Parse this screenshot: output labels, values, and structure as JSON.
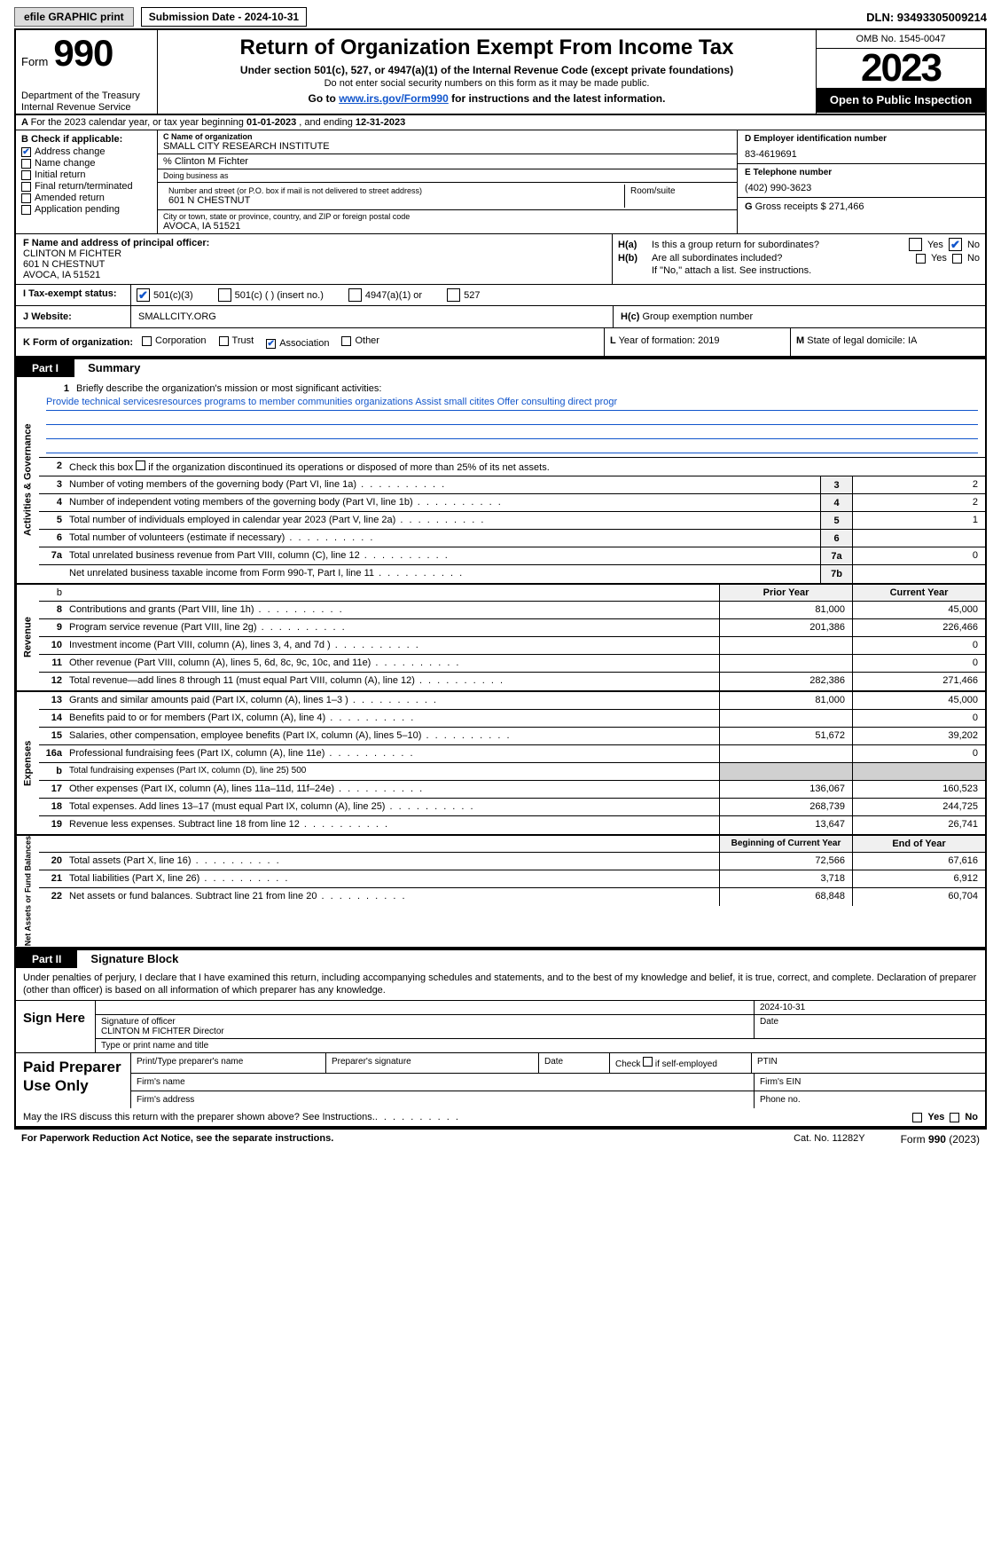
{
  "top": {
    "efile": "efile GRAPHIC print",
    "submission": "Submission Date - 2024-10-31",
    "dln": "DLN: 93493305009214"
  },
  "header": {
    "form_word": "Form",
    "form_num": "990",
    "title": "Return of Organization Exempt From Income Tax",
    "subtitle": "Under section 501(c), 527, or 4947(a)(1) of the Internal Revenue Code (except private foundations)",
    "nossn": "Do not enter social security numbers on this form as it may be made public.",
    "goto_pre": "Go to ",
    "goto_link": "www.irs.gov/Form990",
    "goto_post": " for instructions and the latest information.",
    "dept": "Department of the Treasury\nInternal Revenue Service",
    "omb": "OMB No. 1545-0047",
    "year": "2023",
    "open": "Open to Public Inspection"
  },
  "A": {
    "text_pre": "For the 2023 calendar year, or tax year beginning ",
    "begin": "01-01-2023",
    "mid": " , and ending ",
    "end": "12-31-2023"
  },
  "B": {
    "hdr": "B Check if applicable:",
    "items": [
      {
        "label": "Address change",
        "checked": true
      },
      {
        "label": "Name change",
        "checked": false
      },
      {
        "label": "Initial return",
        "checked": false
      },
      {
        "label": "Final return/terminated",
        "checked": false
      },
      {
        "label": "Amended return",
        "checked": false
      },
      {
        "label": "Application pending",
        "checked": false
      }
    ]
  },
  "C": {
    "name_lbl": "C Name of organization",
    "name": "SMALL CITY RESEARCH INSTITUTE",
    "care_of": "% Clinton M Fichter",
    "dba_lbl": "Doing business as",
    "addr_lbl": "Number and street (or P.O. box if mail is not delivered to street address)",
    "addr": "601 N CHESTNUT",
    "room_lbl": "Room/suite",
    "city_lbl": "City or town, state or province, country, and ZIP or foreign postal code",
    "city": "AVOCA, IA  51521"
  },
  "D": {
    "ein_lbl": "D Employer identification number",
    "ein": "83-4619691",
    "phone_lbl": "E Telephone number",
    "phone": "(402) 990-3623",
    "gross_lbl": "G",
    "gross": "Gross receipts $ 271,466"
  },
  "F": {
    "lbl": "F  Name and address of principal officer:",
    "name": "CLINTON M FICHTER",
    "addr1": "601 N CHESTNUT",
    "addr2": "AVOCA, IA  51521"
  },
  "H": {
    "a_lbl": "H(a)",
    "a_txt": "Is this a group return for subordinates?",
    "a_no_checked": true,
    "b_lbl": "H(b)",
    "b_txt": "Are all subordinates included?",
    "b_note": "If \"No,\" attach a list. See instructions.",
    "c_lbl": "H(c)",
    "c_txt": "Group exemption number",
    "yes": "Yes",
    "no": "No"
  },
  "I": {
    "lbl": "Tax-exempt status:",
    "opts": [
      {
        "label": "501(c)(3)",
        "checked": true
      },
      {
        "label": "501(c) (  ) (insert no.)",
        "checked": false
      },
      {
        "label": "4947(a)(1) or",
        "checked": false
      },
      {
        "label": "527",
        "checked": false
      }
    ]
  },
  "J": {
    "lbl": "Website:",
    "val": "SMALLCITY.ORG"
  },
  "K": {
    "lbl": "K Form of organization:",
    "opts": [
      {
        "label": "Corporation",
        "checked": false
      },
      {
        "label": "Trust",
        "checked": false
      },
      {
        "label": "Association",
        "checked": true
      },
      {
        "label": "Other",
        "checked": false
      }
    ]
  },
  "L": {
    "lbl": "L",
    "txt": "Year of formation: 2019"
  },
  "M": {
    "lbl": "M",
    "txt": "State of legal domicile: IA"
  },
  "partI": {
    "tag": "Part I",
    "title": "Summary"
  },
  "mission": {
    "lbl": "Briefly describe the organization's mission or most significant activities:",
    "val": "Provide technical servicesresources programs to member communities organizations Assist small citites Offer consulting direct progr"
  },
  "gov_lines": {
    "l2": "Check this box      if the organization discontinued its operations or disposed of more than 25% of its net assets.",
    "l3": {
      "txt": "Number of voting members of the governing body (Part VI, line 1a)",
      "box": "3",
      "val": "2"
    },
    "l4": {
      "txt": "Number of independent voting members of the governing body (Part VI, line 1b)",
      "box": "4",
      "val": "2"
    },
    "l5": {
      "txt": "Total number of individuals employed in calendar year 2023 (Part V, line 2a)",
      "box": "5",
      "val": "1"
    },
    "l6": {
      "txt": "Total number of volunteers (estimate if necessary)",
      "box": "6",
      "val": ""
    },
    "l7a": {
      "txt": "Total unrelated business revenue from Part VIII, column (C), line 12",
      "box": "7a",
      "val": "0"
    },
    "l7b": {
      "txt": "Net unrelated business taxable income from Form 990-T, Part I, line 11",
      "box": "7b",
      "val": ""
    }
  },
  "col_hdrs": {
    "prior": "Prior Year",
    "current": "Current Year",
    "begin": "Beginning of Current Year",
    "end": "End of Year"
  },
  "rev": [
    {
      "n": "8",
      "txt": "Contributions and grants (Part VIII, line 1h)",
      "p": "81,000",
      "c": "45,000"
    },
    {
      "n": "9",
      "txt": "Program service revenue (Part VIII, line 2g)",
      "p": "201,386",
      "c": "226,466"
    },
    {
      "n": "10",
      "txt": "Investment income (Part VIII, column (A), lines 3, 4, and 7d )",
      "p": "",
      "c": "0"
    },
    {
      "n": "11",
      "txt": "Other revenue (Part VIII, column (A), lines 5, 6d, 8c, 9c, 10c, and 11e)",
      "p": "",
      "c": "0"
    },
    {
      "n": "12",
      "txt": "Total revenue—add lines 8 through 11 (must equal Part VIII, column (A), line 12)",
      "p": "282,386",
      "c": "271,466"
    }
  ],
  "exp": [
    {
      "n": "13",
      "txt": "Grants and similar amounts paid (Part IX, column (A), lines 1–3 )",
      "p": "81,000",
      "c": "45,000"
    },
    {
      "n": "14",
      "txt": "Benefits paid to or for members (Part IX, column (A), line 4)",
      "p": "",
      "c": "0"
    },
    {
      "n": "15",
      "txt": "Salaries, other compensation, employee benefits (Part IX, column (A), lines 5–10)",
      "p": "51,672",
      "c": "39,202"
    },
    {
      "n": "16a",
      "txt": "Professional fundraising fees (Part IX, column (A), line 11e)",
      "p": "",
      "c": "0"
    },
    {
      "n": "b",
      "txt": "Total fundraising expenses (Part IX, column (D), line 25) 500",
      "grey": true
    },
    {
      "n": "17",
      "txt": "Other expenses (Part IX, column (A), lines 11a–11d, 11f–24e)",
      "p": "136,067",
      "c": "160,523"
    },
    {
      "n": "18",
      "txt": "Total expenses. Add lines 13–17 (must equal Part IX, column (A), line 25)",
      "p": "268,739",
      "c": "244,725"
    },
    {
      "n": "19",
      "txt": "Revenue less expenses. Subtract line 18 from line 12",
      "p": "13,647",
      "c": "26,741"
    }
  ],
  "net": [
    {
      "n": "20",
      "txt": "Total assets (Part X, line 16)",
      "p": "72,566",
      "c": "67,616"
    },
    {
      "n": "21",
      "txt": "Total liabilities (Part X, line 26)",
      "p": "3,718",
      "c": "6,912"
    },
    {
      "n": "22",
      "txt": "Net assets or fund balances. Subtract line 21 from line 20",
      "p": "68,848",
      "c": "60,704"
    }
  ],
  "tabs": {
    "gov": "Activities & Governance",
    "rev": "Revenue",
    "exp": "Expenses",
    "net": "Net Assets or Fund Balances"
  },
  "partII": {
    "tag": "Part II",
    "title": "Signature Block"
  },
  "perjury": "Under penalties of perjury, I declare that I have examined this return, including accompanying schedules and statements, and to the best of my knowledge and belief, it is true, correct, and complete. Declaration of preparer (other than officer) is based on all information of which preparer has any knowledge.",
  "sign": {
    "here": "Sign Here",
    "sig_lbl": "Signature of officer",
    "officer": "CLINTON M FICHTER  Director",
    "type_lbl": "Type or print name and title",
    "date_lbl": "Date",
    "date": "2024-10-31"
  },
  "paid": {
    "lbl": "Paid Preparer Use Only",
    "print_lbl": "Print/Type preparer's name",
    "sig_lbl": "Preparer's signature",
    "date_lbl": "Date",
    "check_lbl": "Check       if self-employed",
    "ptin_lbl": "PTIN",
    "firm_name": "Firm's name",
    "firm_ein": "Firm's EIN",
    "firm_addr": "Firm's address",
    "phone": "Phone no."
  },
  "discuss": "May the IRS discuss this return with the preparer shown above? See Instructions.",
  "footer": {
    "l": "For Paperwork Reduction Act Notice, see the separate instructions.",
    "m": "Cat. No. 11282Y",
    "r_pre": "Form ",
    "r_form": "990",
    "r_post": " (2023)"
  }
}
